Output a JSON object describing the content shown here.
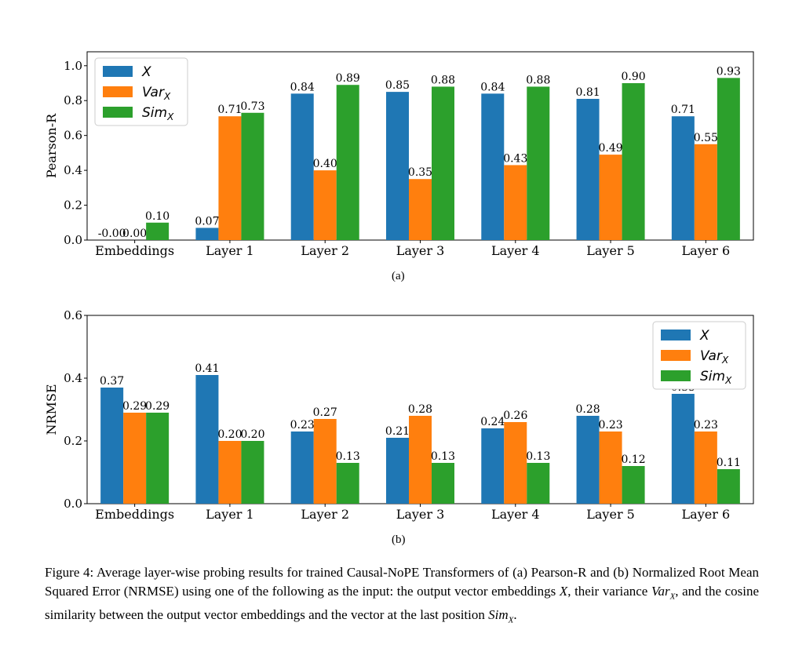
{
  "colors": {
    "X": "#1f77b4",
    "VarX": "#ff7f0e",
    "SimX": "#2ca02c"
  },
  "chart_data": [
    {
      "type": "bar",
      "sublabel": "(a)",
      "ylabel": "Pearson-R",
      "ylim": [
        0,
        1.08
      ],
      "yticks": [
        0.0,
        0.2,
        0.4,
        0.6,
        0.8,
        1.0
      ],
      "ytick_labels": [
        "0.0",
        "0.2",
        "0.4",
        "0.6",
        "0.8",
        "1.0"
      ],
      "legend_position": "top-left",
      "categories": [
        "Embeddings",
        "Layer 1",
        "Layer 2",
        "Layer 3",
        "Layer 4",
        "Layer 5",
        "Layer 6"
      ],
      "series": [
        {
          "name": "X",
          "key": "X",
          "values": [
            -0.0,
            0.07,
            0.84,
            0.85,
            0.84,
            0.81,
            0.71
          ],
          "labels": [
            "-0.00",
            "0.07",
            "0.84",
            "0.85",
            "0.84",
            "0.81",
            "0.71"
          ]
        },
        {
          "name": "VarX",
          "key": "VarX",
          "values": [
            0.0,
            0.71,
            0.4,
            0.35,
            0.43,
            0.49,
            0.55
          ],
          "labels": [
            "0.00",
            "0.71",
            "0.40",
            "0.35",
            "0.43",
            "0.49",
            "0.55"
          ]
        },
        {
          "name": "SimX",
          "key": "SimX",
          "values": [
            0.1,
            0.73,
            0.89,
            0.88,
            0.88,
            0.9,
            0.93
          ],
          "labels": [
            "0.10",
            "0.73",
            "0.89",
            "0.88",
            "0.88",
            "0.90",
            "0.93"
          ]
        }
      ]
    },
    {
      "type": "bar",
      "sublabel": "(b)",
      "ylabel": "NRMSE",
      "ylim": [
        0,
        0.6
      ],
      "yticks": [
        0.0,
        0.2,
        0.4,
        0.6
      ],
      "ytick_labels": [
        "0.0",
        "0.2",
        "0.4",
        "0.6"
      ],
      "legend_position": "top-right",
      "categories": [
        "Embeddings",
        "Layer 1",
        "Layer 2",
        "Layer 3",
        "Layer 4",
        "Layer 5",
        "Layer 6"
      ],
      "series": [
        {
          "name": "X",
          "key": "X",
          "values": [
            0.37,
            0.41,
            0.23,
            0.21,
            0.24,
            0.28,
            0.35
          ],
          "labels": [
            "0.37",
            "0.41",
            "0.23",
            "0.21",
            "0.24",
            "0.28",
            "0.35"
          ]
        },
        {
          "name": "VarX",
          "key": "VarX",
          "values": [
            0.29,
            0.2,
            0.27,
            0.28,
            0.26,
            0.23,
            0.23
          ],
          "labels": [
            "0.29",
            "0.20",
            "0.27",
            "0.28",
            "0.26",
            "0.23",
            "0.23"
          ]
        },
        {
          "name": "SimX",
          "key": "SimX",
          "values": [
            0.29,
            0.2,
            0.13,
            0.13,
            0.13,
            0.12,
            0.11
          ],
          "labels": [
            "0.29",
            "0.20",
            "0.13",
            "0.13",
            "0.13",
            "0.12",
            "0.11"
          ]
        }
      ]
    }
  ],
  "caption": {
    "label": "Figure 4:",
    "text1": " Average layer-wise probing results for trained Causal-NoPE Transformers of (a) Pearson-R and (b) Normalized Root Mean Squared Error (NRMSE) using one of the following as the input: the output vector embeddings ",
    "sym_x": "X",
    "text2": ", their variance ",
    "sym_var": "Var",
    "text3": ", and the cosine similarity between the output vector embeddings and the vector at the last position ",
    "sym_sim": "Sim",
    "sub": "X",
    "end": "."
  }
}
